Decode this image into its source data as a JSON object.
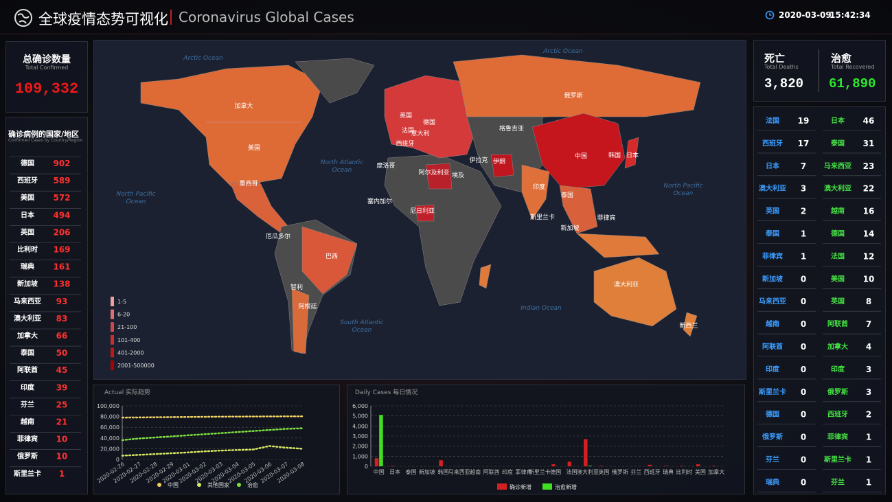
{
  "header": {
    "title": "全球疫情态势可视化",
    "subtitle": "Coronavirus Global Cases",
    "date": "2020-03-09",
    "time": "15:42:34"
  },
  "total_confirmed": {
    "label": "总确诊数量",
    "label_en": "Total Confirmed",
    "value": "109,332"
  },
  "confirmed_list": {
    "title": "确诊病例的国家/地区",
    "title_en": "Confirmed Cases by Country/Region",
    "rows": [
      [
        "德国",
        902
      ],
      [
        "西班牙",
        589
      ],
      [
        "美国",
        572
      ],
      [
        "日本",
        494
      ],
      [
        "英国",
        206
      ],
      [
        "比利时",
        169
      ],
      [
        "瑞典",
        161
      ],
      [
        "新加坡",
        138
      ],
      [
        "马来西亚",
        93
      ],
      [
        "澳大利亚",
        83
      ],
      [
        "加拿大",
        66
      ],
      [
        "泰国",
        50
      ],
      [
        "阿联酋",
        45
      ],
      [
        "印度",
        39
      ],
      [
        "芬兰",
        25
      ],
      [
        "越南",
        21
      ],
      [
        "菲律宾",
        10
      ],
      [
        "俄罗斯",
        10
      ],
      [
        "斯里兰卡",
        1
      ]
    ]
  },
  "deaths": {
    "label": "死亡",
    "label_en": "Total Deaths",
    "value": "3,820",
    "rows": [
      [
        "法国",
        19
      ],
      [
        "西班牙",
        17
      ],
      [
        "日本",
        7
      ],
      [
        "澳大利亚",
        3
      ],
      [
        "英国",
        2
      ],
      [
        "泰国",
        1
      ],
      [
        "菲律宾",
        1
      ],
      [
        "新加坡",
        0
      ],
      [
        "马来西亚",
        0
      ],
      [
        "越南",
        0
      ],
      [
        "阿联酋",
        0
      ],
      [
        "印度",
        0
      ],
      [
        "斯里兰卡",
        0
      ],
      [
        "德国",
        0
      ],
      [
        "俄罗斯",
        0
      ],
      [
        "芬兰",
        0
      ],
      [
        "瑞典",
        0
      ]
    ]
  },
  "recovered": {
    "label": "治愈",
    "label_en": "Total Recovered",
    "value": "61,890",
    "rows": [
      [
        "日本",
        46
      ],
      [
        "泰国",
        31
      ],
      [
        "马来西亚",
        23
      ],
      [
        "澳大利亚",
        22
      ],
      [
        "越南",
        16
      ],
      [
        "德国",
        14
      ],
      [
        "法国",
        12
      ],
      [
        "美国",
        10
      ],
      [
        "英国",
        8
      ],
      [
        "阿联酋",
        7
      ],
      [
        "加拿大",
        4
      ],
      [
        "印度",
        3
      ],
      [
        "俄罗斯",
        3
      ],
      [
        "西班牙",
        2
      ],
      [
        "菲律宾",
        1
      ],
      [
        "斯里兰卡",
        1
      ],
      [
        "芬兰",
        1
      ]
    ]
  },
  "map": {
    "countries": [
      "加拿大",
      "美国",
      "墨西哥",
      "厄瓜多尔",
      "巴西",
      "智利",
      "阿根廷",
      "俄罗斯",
      "格鲁吉亚",
      "中国",
      "韩国",
      "日本",
      "印度",
      "伊朗",
      "伊拉克",
      "埃及",
      "阿尔及利亚",
      "摩洛哥",
      "尼日利亚",
      "塞内加尔",
      "澳大利亚",
      "新西兰",
      "泰国",
      "新加坡",
      "斯里兰卡",
      "菲律宾",
      "英国",
      "法国",
      "德国",
      "意大利",
      "西班牙"
    ],
    "oceans": [
      "Arctic Ocean",
      "Arctic Ocean",
      "North Atlantic Ocean",
      "North Pacific Ocean",
      "North Pacific Ocean",
      "South Atlantic Ocean",
      "Indian Ocean"
    ],
    "legend": [
      {
        "label": "1-5",
        "color": "#e8a0a0"
      },
      {
        "label": "6-20",
        "color": "#e07070"
      },
      {
        "label": "21-100",
        "color": "#d04848"
      },
      {
        "label": "101-400",
        "color": "#c83030"
      },
      {
        "label": "401-2000",
        "color": "#c01818"
      },
      {
        "label": "2001-500000",
        "color": "#b00000"
      }
    ]
  },
  "chart_data": [
    {
      "type": "line",
      "title": "Actual 实际趋势",
      "categories": [
        "2020-02-26",
        "2020-02-27",
        "2020-02-28",
        "2020-02-29",
        "2020-03-01",
        "2020-03-02",
        "2020-03-03",
        "2020-03-04",
        "2020-03-05",
        "2020-03-06",
        "2020-03-07",
        "2020-03-08"
      ],
      "series": [
        {
          "name": "中国",
          "color": "#f0d060",
          "values": [
            78000,
            78300,
            78600,
            78900,
            79200,
            79500,
            79800,
            80000,
            80100,
            80300,
            80400,
            80500
          ]
        },
        {
          "name": "其他国家",
          "color": "#d8e860",
          "values": [
            7000,
            8500,
            10000,
            11500,
            13000,
            15000,
            16500,
            17500,
            18500,
            25000,
            22000,
            20000
          ]
        },
        {
          "name": "治愈",
          "color": "#7ee040",
          "values": [
            36000,
            39000,
            41000,
            43000,
            45000,
            47000,
            49000,
            51000,
            53000,
            55000,
            57000,
            58000
          ]
        }
      ],
      "ylim": [
        0,
        100000
      ],
      "yticks": [
        0,
        {
          "value": 20000,
          "label": "20,000"
        },
        {
          "value": 40000,
          "label": "40,000"
        },
        {
          "value": 60000,
          "label": "60,000"
        },
        {
          "value": 80000,
          "label": "80,000"
        },
        {
          "value": 100000,
          "label": "100,000"
        }
      ],
      "grid": true
    },
    {
      "type": "bar",
      "title": "Daily Cases 每日情况",
      "categories": [
        "中国",
        "日本",
        "泰国",
        "新加坡",
        "韩国",
        "马来西亚",
        "越南",
        "阿联酋",
        "印度",
        "菲律宾",
        "斯里兰卡",
        "德国",
        "法国",
        "澳大利亚",
        "英国",
        "俄罗斯",
        "芬兰",
        "西班牙",
        "瑞典",
        "比利时",
        "美国",
        "加拿大"
      ],
      "series": [
        {
          "name": "确诊新增",
          "color": "#d42020",
          "values": [
            800,
            50,
            0,
            10,
            600,
            10,
            0,
            0,
            0,
            0,
            0,
            200,
            450,
            2700,
            50,
            0,
            0,
            150,
            50,
            50,
            200,
            50
          ]
        },
        {
          "name": "治愈新增",
          "color": "#40e020",
          "values": [
            5100,
            0,
            0,
            0,
            0,
            0,
            0,
            0,
            0,
            0,
            0,
            0,
            0,
            60,
            0,
            0,
            0,
            0,
            0,
            0,
            0,
            0
          ]
        }
      ],
      "ylim": [
        0,
        6000
      ],
      "yticks": [
        0,
        {
          "value": 1000,
          "label": "1,000"
        },
        {
          "value": 2000,
          "label": "2,000"
        },
        {
          "value": 3000,
          "label": "3,000"
        },
        {
          "value": 4000,
          "label": "4,000"
        },
        {
          "value": 5000,
          "label": "5,000"
        },
        {
          "value": 6000,
          "label": "6,000"
        }
      ],
      "grid": true
    }
  ]
}
